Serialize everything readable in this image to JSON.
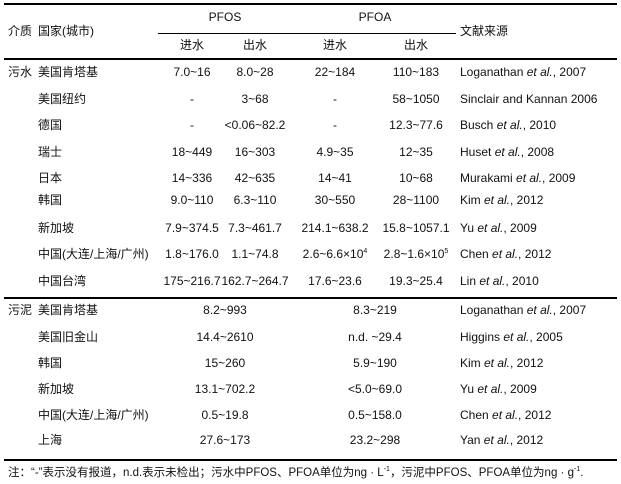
{
  "header": {
    "medium": "介质",
    "country": "国家(城市)",
    "pfos": "PFOS",
    "pfoa": "PFOA",
    "influent": "进水",
    "effluent": "出水",
    "reference": "文献来源"
  },
  "sections": [
    {
      "medium": "污水",
      "rows": [
        {
          "country": "美国肯塔基",
          "pfos_in": "7.0~16",
          "pfos_out": "8.0~28",
          "pfoa_in": "22~184",
          "pfoa_out": "110~183",
          "ref": [
            "Loganathan ",
            "et al.",
            ", 2007"
          ]
        },
        {
          "country": "美国纽约",
          "pfos_in": "-",
          "pfos_out": "3~68",
          "pfoa_in": "-",
          "pfoa_out": "58~1050",
          "ref": [
            "Sinclair and Kannan 2006",
            "",
            ""
          ]
        },
        {
          "country": "德国",
          "pfos_in": "-",
          "pfos_out": "<0.06~82.2",
          "pfoa_in": "-",
          "pfoa_out": "12.3~77.6",
          "ref": [
            "Busch ",
            "et al.",
            ", 2010"
          ]
        },
        {
          "country": "瑞士",
          "pfos_in": "18~449",
          "pfos_out": "16~303",
          "pfoa_in": "4.9~35",
          "pfoa_out": "12~35",
          "ref": [
            "Huset ",
            "et al.",
            ", 2008"
          ]
        },
        {
          "country": "日本",
          "pfos_in": "14~336",
          "pfos_out": "42~635",
          "pfoa_in": "14~41",
          "pfoa_out": "10~68",
          "ref": [
            "Murakami ",
            "et al.",
            ", 2009"
          ]
        },
        {
          "country": "韩国",
          "pfos_in": "9.0~110",
          "pfos_out": "6.3~110",
          "pfoa_in": "30~550",
          "pfoa_out": "28~1100",
          "ref": [
            "Kim ",
            "et al.",
            ", 2012"
          ]
        },
        {
          "country": "新加坡",
          "pfos_in": "7.9~374.5",
          "pfos_out": "7.3~461.7",
          "pfoa_in": "214.1~638.2",
          "pfoa_out": "15.8~1057.1",
          "ref": [
            "Yu ",
            "et al.",
            ", 2009"
          ]
        },
        {
          "country": "中国(大连/上海/广州)",
          "pfos_in": "1.8~176.0",
          "pfos_out": "1.1~74.8",
          "pfoa_in": "2.6~6.6×10",
          "pfoa_in_sup": "4",
          "pfoa_out": "2.8~1.6×10",
          "pfoa_out_sup": "5",
          "ref": [
            "Chen ",
            "et al.",
            ", 2012"
          ]
        },
        {
          "country": "中国台湾",
          "pfos_in": "175~216.7",
          "pfos_out": "162.7~264.7",
          "pfoa_in": "17.6~23.6",
          "pfoa_out": "19.3~25.4",
          "ref": [
            "Lin ",
            "et al.",
            ", 2010"
          ]
        }
      ]
    },
    {
      "medium": "污泥",
      "rows": [
        {
          "country": "美国肯塔基",
          "pfos": "8.2~993",
          "pfoa": "8.3~219",
          "ref": [
            "Loganathan ",
            "et al.",
            ", 2007"
          ]
        },
        {
          "country": "美国旧金山",
          "pfos": "14.4~2610",
          "pfoa": "n.d. ~29.4",
          "ref": [
            "Higgins ",
            "et al.",
            ", 2005"
          ]
        },
        {
          "country": "韩国",
          "pfos": "15~260",
          "pfoa": "5.9~190",
          "ref": [
            "Kim ",
            "et al.",
            ", 2012"
          ]
        },
        {
          "country": "新加坡",
          "pfos": "13.1~702.2",
          "pfoa": "<5.0~69.0",
          "ref": [
            "Yu ",
            "et al.",
            ", 2009"
          ]
        },
        {
          "country": "中国(大连/上海/广州)",
          "pfos": "0.5~19.8",
          "pfoa": "0.5~158.0",
          "ref": [
            "Chen ",
            "et al.",
            ", 2012"
          ]
        },
        {
          "country": "上海",
          "pfos": "27.6~173",
          "pfoa": "23.2~298",
          "ref": [
            "Yan ",
            "et al.",
            ", 2012"
          ]
        }
      ]
    }
  ],
  "note": {
    "a": "注：“-”表示没有报道，n.d.表示未检出；污水中PFOS、PFOA单位为ng · L",
    "a_sup": "-1",
    "b": "，污泥中PFOS、PFOA单位为ng · g",
    "b_sup": "-1",
    "c": "."
  }
}
